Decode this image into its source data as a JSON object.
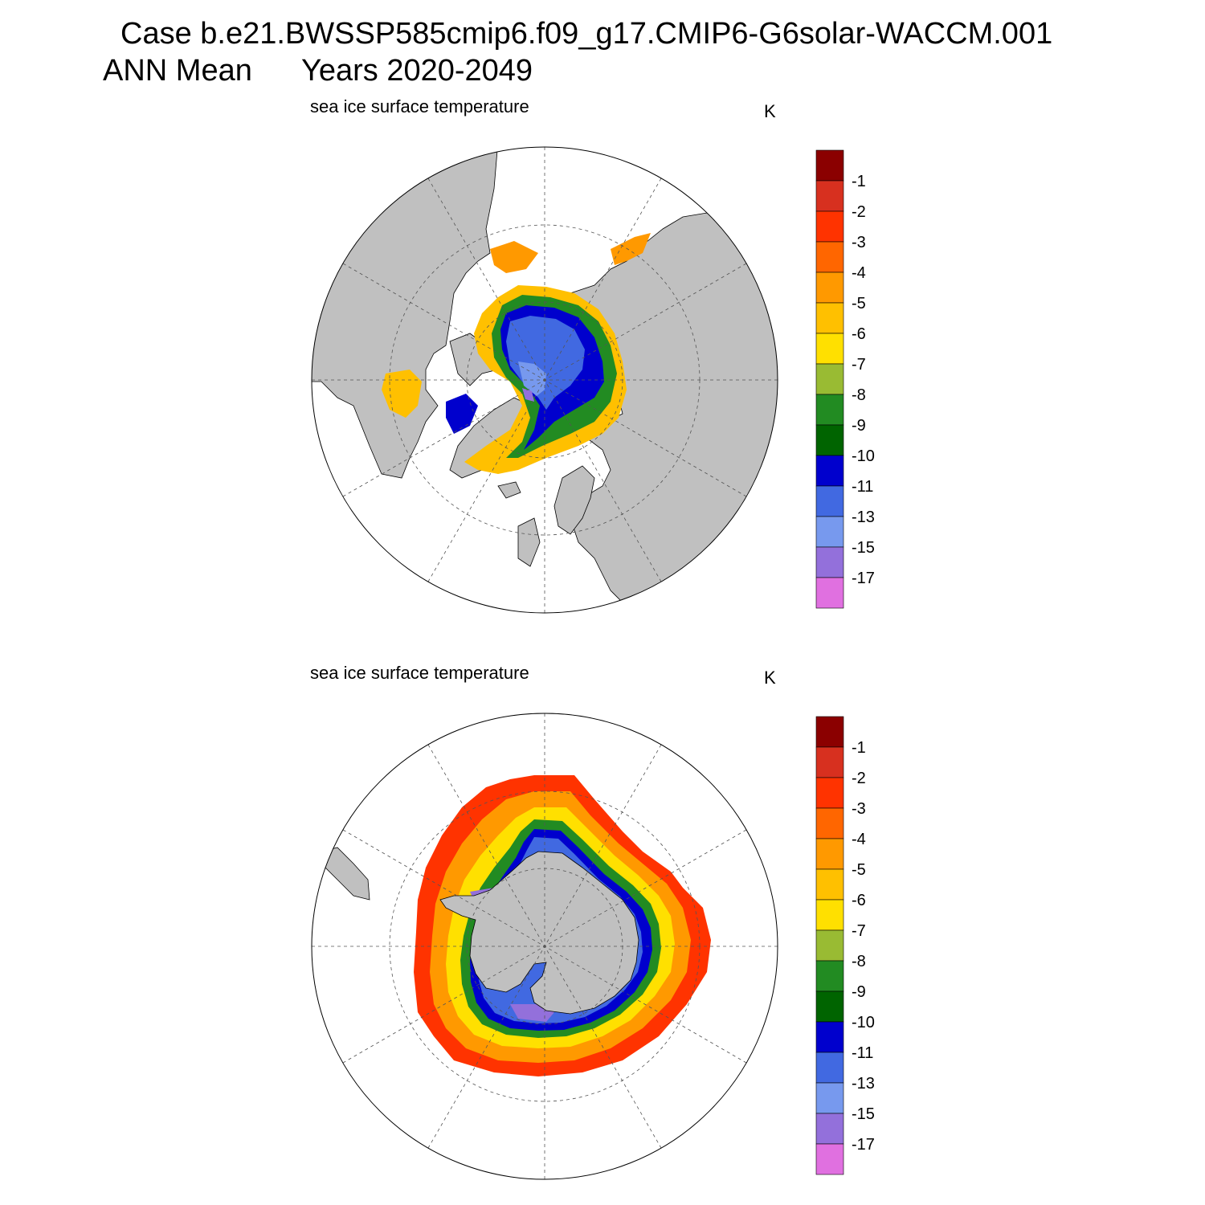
{
  "header": {
    "case_line": "Case b.e21.BWSSP585cmip6.f09_g17.CMIP6-G6solar-WACCM.001",
    "period_label": "ANN Mean",
    "years_label": "Years 2020-2049"
  },
  "panels": [
    {
      "id": "north",
      "subtitle": "sea ice surface temperature",
      "units": "K"
    },
    {
      "id": "south",
      "subtitle": "sea ice surface temperature",
      "units": "K"
    }
  ],
  "colorbar": {
    "labels": [
      "-1",
      "-2",
      "-3",
      "-4",
      "-5",
      "-6",
      "-7",
      "-8",
      "-9",
      "-10",
      "-11",
      "-13",
      "-15",
      "-17"
    ],
    "colors": [
      "#8b0000",
      "#d7301f",
      "#ff3300",
      "#ff6600",
      "#ff9900",
      "#ffc000",
      "#ffe000",
      "#99bb33",
      "#228b22",
      "#006400",
      "#0000cd",
      "#4169e1",
      "#7799ee",
      "#9370db",
      "#e070e0"
    ]
  },
  "colors": {
    "land": "#c0c0c0",
    "ocean": "#ffffff",
    "graticule": "#555555"
  }
}
